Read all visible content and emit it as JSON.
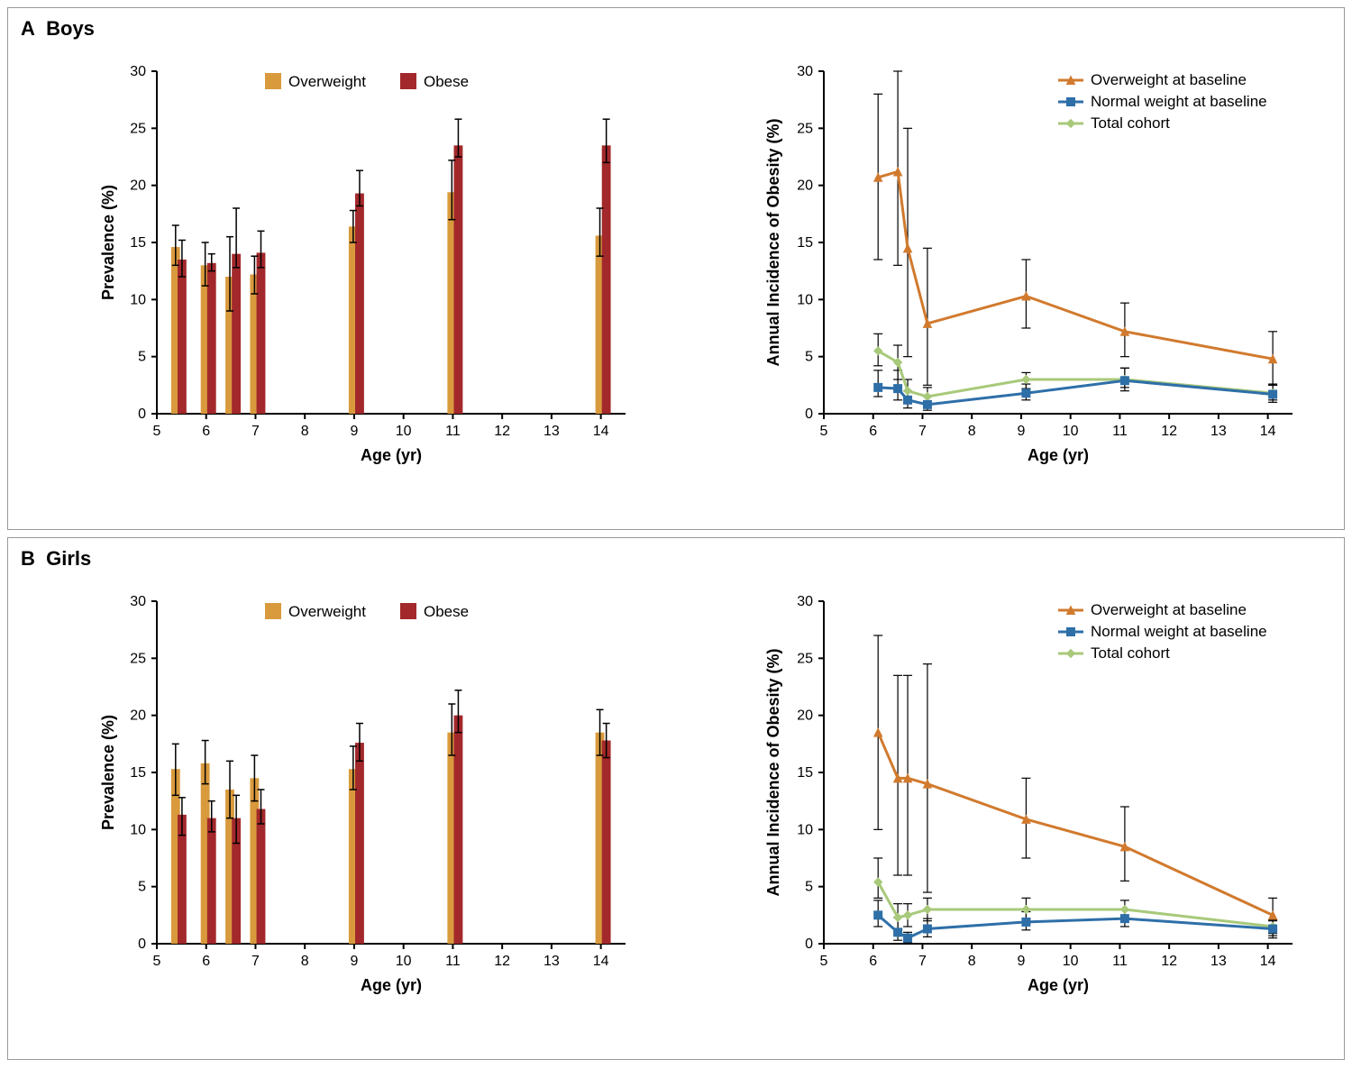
{
  "panels": {
    "A": {
      "label": "A",
      "title": "Boys"
    },
    "B": {
      "label": "B",
      "title": "Girls"
    }
  },
  "colors": {
    "overweight_bar": "#d99a3d",
    "obese_bar": "#a3282b",
    "overweight_line": "#d17a2e",
    "normal_line": "#2e6fa8",
    "cohort_line": "#a8c97a",
    "error_bar": "#000000",
    "axis": "#000000",
    "grid": "#ffffff",
    "background": "#ffffff"
  },
  "typography": {
    "axis_label_fontsize": 18,
    "tick_fontsize": 16,
    "legend_fontsize": 17,
    "panel_label_fontsize": 22
  },
  "bar_chart_common": {
    "type": "bar",
    "xlabel": "Age (yr)",
    "ylabel": "Prevalence (%)",
    "xlim": [
      5,
      14.5
    ],
    "ylim": [
      0,
      30
    ],
    "ytick_step": 5,
    "xticks": [
      5,
      6,
      7,
      8,
      9,
      10,
      11,
      12,
      13,
      14
    ],
    "legend_items": [
      {
        "label": "Overweight",
        "color_key": "overweight_bar"
      },
      {
        "label": "Obese",
        "color_key": "obese_bar"
      }
    ],
    "bar_width": 0.18
  },
  "line_chart_common": {
    "type": "line",
    "xlabel": "Age (yr)",
    "ylabel": "Annual Incidence of Obesity (%)",
    "xlim": [
      5,
      14.5
    ],
    "ylim": [
      0,
      30
    ],
    "ytick_step": 5,
    "xticks": [
      5,
      6,
      7,
      8,
      9,
      10,
      11,
      12,
      13,
      14
    ],
    "legend_items": [
      {
        "label": "Overweight at baseline",
        "color_key": "overweight_line",
        "marker": "triangle"
      },
      {
        "label": "Normal weight at baseline",
        "color_key": "normal_line",
        "marker": "square"
      },
      {
        "label": "Total cohort",
        "color_key": "cohort_line",
        "marker": "diamond"
      }
    ],
    "line_width": 3,
    "marker_size": 9
  },
  "boys_bar": {
    "ages": [
      5.4,
      6.0,
      6.5,
      7.0,
      9.0,
      11.0,
      14.0
    ],
    "overweight": {
      "values": [
        14.6,
        13.0,
        12.0,
        12.2,
        16.4,
        19.4,
        15.6
      ],
      "err_low": [
        13.0,
        11.2,
        9.0,
        10.5,
        15.0,
        17.0,
        13.8
      ],
      "err_high": [
        16.5,
        15.0,
        15.5,
        13.8,
        17.8,
        22.2,
        18.0
      ]
    },
    "obese": {
      "values": [
        13.5,
        13.2,
        14.0,
        14.1,
        19.3,
        23.5,
        23.5
      ],
      "err_low": [
        12.0,
        12.5,
        12.8,
        12.8,
        18.2,
        22.5,
        22.0
      ],
      "err_high": [
        15.2,
        14.0,
        18.0,
        16.0,
        21.3,
        25.8,
        25.8
      ]
    }
  },
  "boys_line": {
    "ages": [
      6.1,
      6.5,
      6.7,
      7.1,
      9.1,
      11.1,
      14.1
    ],
    "overweight": {
      "values": [
        20.7,
        21.2,
        14.5,
        7.9,
        10.3,
        7.2,
        4.8
      ],
      "err_low": [
        13.5,
        13.0,
        5.0,
        2.5,
        7.5,
        5.0,
        2.5
      ],
      "err_high": [
        28.0,
        30.0,
        25.0,
        14.5,
        13.5,
        9.7,
        7.2
      ]
    },
    "normal": {
      "values": [
        2.3,
        2.2,
        1.2,
        0.8,
        1.8,
        2.9,
        1.7
      ],
      "err_low": [
        1.5,
        1.2,
        0.5,
        0.3,
        1.2,
        2.0,
        1.0
      ],
      "err_high": [
        3.8,
        3.8,
        2.0,
        1.5,
        2.6,
        4.0,
        2.5
      ]
    },
    "cohort": {
      "values": [
        5.5,
        4.5,
        2.0,
        1.5,
        3.0,
        3.0,
        1.8
      ],
      "err_low": [
        4.2,
        3.0,
        1.2,
        0.8,
        2.2,
        2.3,
        1.2
      ],
      "err_high": [
        7.0,
        6.0,
        3.0,
        2.3,
        3.6,
        4.0,
        2.6
      ]
    }
  },
  "girls_bar": {
    "ages": [
      5.4,
      6.0,
      6.5,
      7.0,
      9.0,
      11.0,
      14.0
    ],
    "overweight": {
      "values": [
        15.3,
        15.8,
        13.5,
        14.5,
        15.3,
        18.5,
        18.5
      ],
      "err_low": [
        13.0,
        14.0,
        11.0,
        12.5,
        13.5,
        16.5,
        16.5
      ],
      "err_high": [
        17.5,
        17.8,
        16.0,
        16.5,
        17.3,
        21.0,
        20.5
      ]
    },
    "obese": {
      "values": [
        11.3,
        11.0,
        11.0,
        11.8,
        17.6,
        20.0,
        17.8
      ],
      "err_low": [
        9.5,
        9.8,
        8.8,
        10.5,
        16.0,
        18.5,
        16.3
      ],
      "err_high": [
        12.8,
        12.5,
        13.0,
        13.5,
        19.3,
        22.2,
        19.3
      ]
    }
  },
  "girls_line": {
    "ages": [
      6.1,
      6.5,
      6.7,
      7.1,
      9.1,
      11.1,
      14.1
    ],
    "overweight": {
      "values": [
        18.5,
        14.5,
        14.5,
        14.0,
        10.9,
        8.5,
        2.5
      ],
      "err_low": [
        10.0,
        6.0,
        6.0,
        4.5,
        7.5,
        5.5,
        0.5
      ],
      "err_high": [
        27.0,
        23.5,
        23.5,
        24.5,
        14.5,
        12.0,
        4.0
      ]
    },
    "normal": {
      "values": [
        2.5,
        1.0,
        0.5,
        1.3,
        1.9,
        2.2,
        1.3
      ],
      "err_low": [
        1.5,
        0.3,
        0.1,
        0.6,
        1.2,
        1.5,
        0.7
      ],
      "err_high": [
        3.8,
        2.3,
        1.0,
        2.2,
        2.8,
        3.0,
        2.0
      ]
    },
    "cohort": {
      "values": [
        5.4,
        2.3,
        2.5,
        3.0,
        3.0,
        3.0,
        1.5
      ],
      "err_low": [
        4.0,
        1.3,
        1.5,
        2.0,
        2.2,
        2.2,
        0.9
      ],
      "err_high": [
        7.5,
        3.5,
        3.5,
        4.0,
        4.0,
        3.8,
        2.1
      ]
    }
  }
}
